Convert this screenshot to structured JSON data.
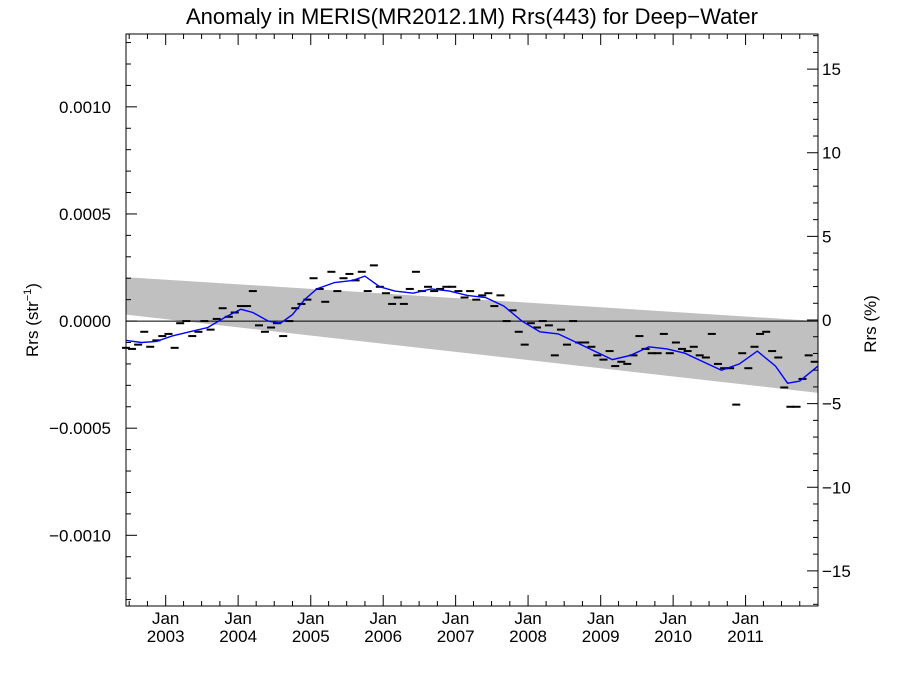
{
  "chart_data": {
    "type": "scatter",
    "title": "Anomaly in MERIS(MR2012.1M) Rrs(443) for Deep−Water",
    "ylabel_left_main": "Rrs (str",
    "ylabel_left_sup": "−1",
    "ylabel_left_close": ")",
    "ylabel_right": "Rrs (%)",
    "xlabel": "",
    "x_range": [
      "2002-06-15",
      "2012-01-01"
    ],
    "ylim_left": [
      -0.00133,
      0.00134
    ],
    "ylim_right": [
      -17.1,
      17.1
    ],
    "yticks_left": [
      {
        "value": 0.001,
        "label": "0.0010"
      },
      {
        "value": 0.0005,
        "label": "0.0005"
      },
      {
        "value": 0.0,
        "label": "0.0000"
      },
      {
        "value": -0.0005,
        "label": "−0.0005"
      },
      {
        "value": -0.001,
        "label": "−0.0010"
      }
    ],
    "yticks_right": [
      {
        "value": 15,
        "label": "15"
      },
      {
        "value": 10,
        "label": "10"
      },
      {
        "value": 5,
        "label": "5"
      },
      {
        "value": 0,
        "label": "0"
      },
      {
        "value": -5,
        "label": "−5"
      },
      {
        "value": -10,
        "label": "−10"
      },
      {
        "value": -15,
        "label": "−15"
      }
    ],
    "xticks": [
      {
        "date": "2003-01-01",
        "month": "Jan",
        "year": "2003"
      },
      {
        "date": "2004-01-01",
        "month": "Jan",
        "year": "2004"
      },
      {
        "date": "2005-01-01",
        "month": "Jan",
        "year": "2005"
      },
      {
        "date": "2006-01-01",
        "month": "Jan",
        "year": "2006"
      },
      {
        "date": "2007-01-01",
        "month": "Jan",
        "year": "2007"
      },
      {
        "date": "2008-01-01",
        "month": "Jan",
        "year": "2008"
      },
      {
        "date": "2009-01-01",
        "month": "Jan",
        "year": "2009"
      },
      {
        "date": "2010-01-01",
        "month": "Jan",
        "year": "2010"
      },
      {
        "date": "2011-01-01",
        "month": "Jan",
        "year": "2011"
      }
    ],
    "band": {
      "start": "2002-06-15",
      "end": "2012-01-01",
      "upper": [
        0.000205,
        0.0
      ],
      "lower": [
        3e-05,
        -0.000335
      ]
    },
    "zero_line": 0.0,
    "monthly_anomalies": [
      {
        "x": "2002-06-15",
        "y": -0.000125
      },
      {
        "x": "2002-07-15",
        "y": -0.00013
      },
      {
        "x": "2002-08-15",
        "y": -0.00011
      },
      {
        "x": "2002-09-15",
        "y": -5e-05
      },
      {
        "x": "2002-10-15",
        "y": -0.00012
      },
      {
        "x": "2002-11-15",
        "y": -9e-05
      },
      {
        "x": "2002-12-15",
        "y": -7e-05
      },
      {
        "x": "2003-01-15",
        "y": -6e-05
      },
      {
        "x": "2003-02-15",
        "y": -0.000125
      },
      {
        "x": "2003-03-15",
        "y": -1e-05
      },
      {
        "x": "2003-04-15",
        "y": 0.0
      },
      {
        "x": "2003-05-15",
        "y": -7e-05
      },
      {
        "x": "2003-06-15",
        "y": -5e-05
      },
      {
        "x": "2003-07-15",
        "y": 0.0
      },
      {
        "x": "2003-08-15",
        "y": -4e-05
      },
      {
        "x": "2003-09-15",
        "y": 1e-05
      },
      {
        "x": "2003-10-15",
        "y": 6e-05
      },
      {
        "x": "2003-11-15",
        "y": 2e-05
      },
      {
        "x": "2003-12-15",
        "y": 4e-05
      },
      {
        "x": "2004-01-15",
        "y": 7e-05
      },
      {
        "x": "2004-02-15",
        "y": 7e-05
      },
      {
        "x": "2004-03-15",
        "y": 0.00014
      },
      {
        "x": "2004-04-15",
        "y": -2e-05
      },
      {
        "x": "2004-05-15",
        "y": -5e-05
      },
      {
        "x": "2004-06-15",
        "y": -3e-05
      },
      {
        "x": "2004-07-15",
        "y": -1e-05
      },
      {
        "x": "2004-08-15",
        "y": -7e-05
      },
      {
        "x": "2004-09-15",
        "y": 0.0
      },
      {
        "x": "2004-10-15",
        "y": 6e-05
      },
      {
        "x": "2004-11-15",
        "y": 8e-05
      },
      {
        "x": "2004-12-15",
        "y": 0.0001
      },
      {
        "x": "2005-01-15",
        "y": 0.0002
      },
      {
        "x": "2005-02-15",
        "y": 0.00015
      },
      {
        "x": "2005-03-15",
        "y": 9e-05
      },
      {
        "x": "2005-04-15",
        "y": 0.00023
      },
      {
        "x": "2005-05-15",
        "y": 0.00014
      },
      {
        "x": "2005-06-15",
        "y": 0.0002
      },
      {
        "x": "2005-07-15",
        "y": 0.00022
      },
      {
        "x": "2005-08-15",
        "y": 0.00019
      },
      {
        "x": "2005-09-15",
        "y": 0.00023
      },
      {
        "x": "2005-10-15",
        "y": 0.00014
      },
      {
        "x": "2005-11-15",
        "y": 0.00026
      },
      {
        "x": "2005-12-15",
        "y": 0.00016
      },
      {
        "x": "2006-01-15",
        "y": 0.00013
      },
      {
        "x": "2006-02-15",
        "y": 8e-05
      },
      {
        "x": "2006-03-15",
        "y": 0.00011
      },
      {
        "x": "2006-04-15",
        "y": 8e-05
      },
      {
        "x": "2006-05-15",
        "y": 0.00015
      },
      {
        "x": "2006-06-15",
        "y": 0.00023
      },
      {
        "x": "2006-07-15",
        "y": 0.00014
      },
      {
        "x": "2006-08-15",
        "y": 0.00016
      },
      {
        "x": "2006-09-15",
        "y": 0.00014
      },
      {
        "x": "2006-10-15",
        "y": 0.00015
      },
      {
        "x": "2006-11-15",
        "y": 0.00016
      },
      {
        "x": "2006-12-15",
        "y": 0.00016
      },
      {
        "x": "2007-01-15",
        "y": 0.00014
      },
      {
        "x": "2007-02-15",
        "y": 0.00011
      },
      {
        "x": "2007-03-15",
        "y": 0.00014
      },
      {
        "x": "2007-04-15",
        "y": 0.0001
      },
      {
        "x": "2007-05-15",
        "y": 0.00012
      },
      {
        "x": "2007-06-15",
        "y": 0.00013
      },
      {
        "x": "2007-07-15",
        "y": 7e-05
      },
      {
        "x": "2007-08-15",
        "y": 0.00012
      },
      {
        "x": "2007-09-15",
        "y": 0.0
      },
      {
        "x": "2007-10-15",
        "y": 5e-05
      },
      {
        "x": "2007-11-15",
        "y": -5e-05
      },
      {
        "x": "2007-12-15",
        "y": -0.00011
      },
      {
        "x": "2008-01-15",
        "y": -1e-05
      },
      {
        "x": "2008-02-15",
        "y": -3e-05
      },
      {
        "x": "2008-03-15",
        "y": 0.0
      },
      {
        "x": "2008-04-15",
        "y": -2e-05
      },
      {
        "x": "2008-05-15",
        "y": -0.00016
      },
      {
        "x": "2008-06-15",
        "y": -4e-05
      },
      {
        "x": "2008-07-15",
        "y": -0.00011
      },
      {
        "x": "2008-08-15",
        "y": 0.0
      },
      {
        "x": "2008-09-15",
        "y": -0.0001
      },
      {
        "x": "2008-10-15",
        "y": -0.0001
      },
      {
        "x": "2008-11-15",
        "y": -0.00012
      },
      {
        "x": "2008-12-15",
        "y": -0.00016
      },
      {
        "x": "2009-01-15",
        "y": -0.00018
      },
      {
        "x": "2009-02-15",
        "y": -0.00014
      },
      {
        "x": "2009-03-15",
        "y": -0.00021
      },
      {
        "x": "2009-04-15",
        "y": -0.00019
      },
      {
        "x": "2009-05-15",
        "y": -0.0002
      },
      {
        "x": "2009-06-15",
        "y": -0.00016
      },
      {
        "x": "2009-07-15",
        "y": -7e-05
      },
      {
        "x": "2009-08-15",
        "y": -0.00013
      },
      {
        "x": "2009-09-15",
        "y": -0.00015
      },
      {
        "x": "2009-10-15",
        "y": -0.00015
      },
      {
        "x": "2009-11-15",
        "y": -6e-05
      },
      {
        "x": "2009-12-15",
        "y": -0.00015
      },
      {
        "x": "2010-01-15",
        "y": -0.0001
      },
      {
        "x": "2010-02-15",
        "y": -0.00013
      },
      {
        "x": "2010-03-15",
        "y": -0.00014
      },
      {
        "x": "2010-04-15",
        "y": -0.00012
      },
      {
        "x": "2010-05-15",
        "y": -0.00016
      },
      {
        "x": "2010-06-15",
        "y": -0.00017
      },
      {
        "x": "2010-07-15",
        "y": -6e-05
      },
      {
        "x": "2010-08-15",
        "y": -0.0002
      },
      {
        "x": "2010-09-15",
        "y": -0.00022
      },
      {
        "x": "2010-10-15",
        "y": -0.00022
      },
      {
        "x": "2010-11-15",
        "y": -0.00039
      },
      {
        "x": "2010-12-15",
        "y": -0.00015
      },
      {
        "x": "2011-01-15",
        "y": -0.00022
      },
      {
        "x": "2011-02-15",
        "y": -0.00012
      },
      {
        "x": "2011-03-15",
        "y": -6e-05
      },
      {
        "x": "2011-04-15",
        "y": -5e-05
      },
      {
        "x": "2011-05-15",
        "y": -0.00014
      },
      {
        "x": "2011-06-15",
        "y": -0.00017
      },
      {
        "x": "2011-07-15",
        "y": -0.00031
      },
      {
        "x": "2011-08-15",
        "y": -0.0004
      },
      {
        "x": "2011-09-15",
        "y": -0.0004
      },
      {
        "x": "2011-10-15",
        "y": -0.00027
      },
      {
        "x": "2011-11-15",
        "y": -0.00016
      },
      {
        "x": "2011-12-15",
        "y": -0.00019
      }
    ],
    "smoothed_line": {
      "color": "#0000ff",
      "points": [
        {
          "x": "2002-06-15",
          "y": -9e-05
        },
        {
          "x": "2002-09-01",
          "y": -0.0001
        },
        {
          "x": "2002-11-15",
          "y": -9.5e-05
        },
        {
          "x": "2003-02-01",
          "y": -7e-05
        },
        {
          "x": "2003-05-01",
          "y": -5e-05
        },
        {
          "x": "2003-08-01",
          "y": -3e-05
        },
        {
          "x": "2003-11-01",
          "y": 2e-05
        },
        {
          "x": "2004-01-15",
          "y": 5.5e-05
        },
        {
          "x": "2004-03-15",
          "y": 4e-05
        },
        {
          "x": "2004-06-01",
          "y": 0.0
        },
        {
          "x": "2004-08-01",
          "y": -1e-05
        },
        {
          "x": "2004-10-01",
          "y": 3e-05
        },
        {
          "x": "2004-12-01",
          "y": 0.0001
        },
        {
          "x": "2005-02-01",
          "y": 0.00015
        },
        {
          "x": "2005-05-01",
          "y": 0.00018
        },
        {
          "x": "2005-08-01",
          "y": 0.00019
        },
        {
          "x": "2005-10-01",
          "y": 0.00021
        },
        {
          "x": "2005-12-15",
          "y": 0.00016
        },
        {
          "x": "2006-03-01",
          "y": 0.00014
        },
        {
          "x": "2006-06-01",
          "y": 0.00013
        },
        {
          "x": "2006-09-01",
          "y": 0.00015
        },
        {
          "x": "2006-12-01",
          "y": 0.00014
        },
        {
          "x": "2007-03-01",
          "y": 0.00012
        },
        {
          "x": "2007-06-01",
          "y": 0.00011
        },
        {
          "x": "2007-09-01",
          "y": 7e-05
        },
        {
          "x": "2007-12-01",
          "y": 0.0
        },
        {
          "x": "2008-03-01",
          "y": -5e-05
        },
        {
          "x": "2008-06-01",
          "y": -6e-05
        },
        {
          "x": "2008-09-01",
          "y": -0.0001
        },
        {
          "x": "2008-12-01",
          "y": -0.00014
        },
        {
          "x": "2009-03-01",
          "y": -0.00018
        },
        {
          "x": "2009-06-01",
          "y": -0.00016
        },
        {
          "x": "2009-09-01",
          "y": -0.00012
        },
        {
          "x": "2009-12-01",
          "y": -0.00013
        },
        {
          "x": "2010-03-01",
          "y": -0.00015
        },
        {
          "x": "2010-06-01",
          "y": -0.00019
        },
        {
          "x": "2010-09-01",
          "y": -0.00023
        },
        {
          "x": "2010-12-01",
          "y": -0.0002
        },
        {
          "x": "2011-03-01",
          "y": -0.00014
        },
        {
          "x": "2011-06-01",
          "y": -0.00021
        },
        {
          "x": "2011-08-01",
          "y": -0.00029
        },
        {
          "x": "2011-10-01",
          "y": -0.00028
        },
        {
          "x": "2012-01-01",
          "y": -0.00021
        }
      ]
    },
    "grid": false,
    "legend": "none"
  }
}
